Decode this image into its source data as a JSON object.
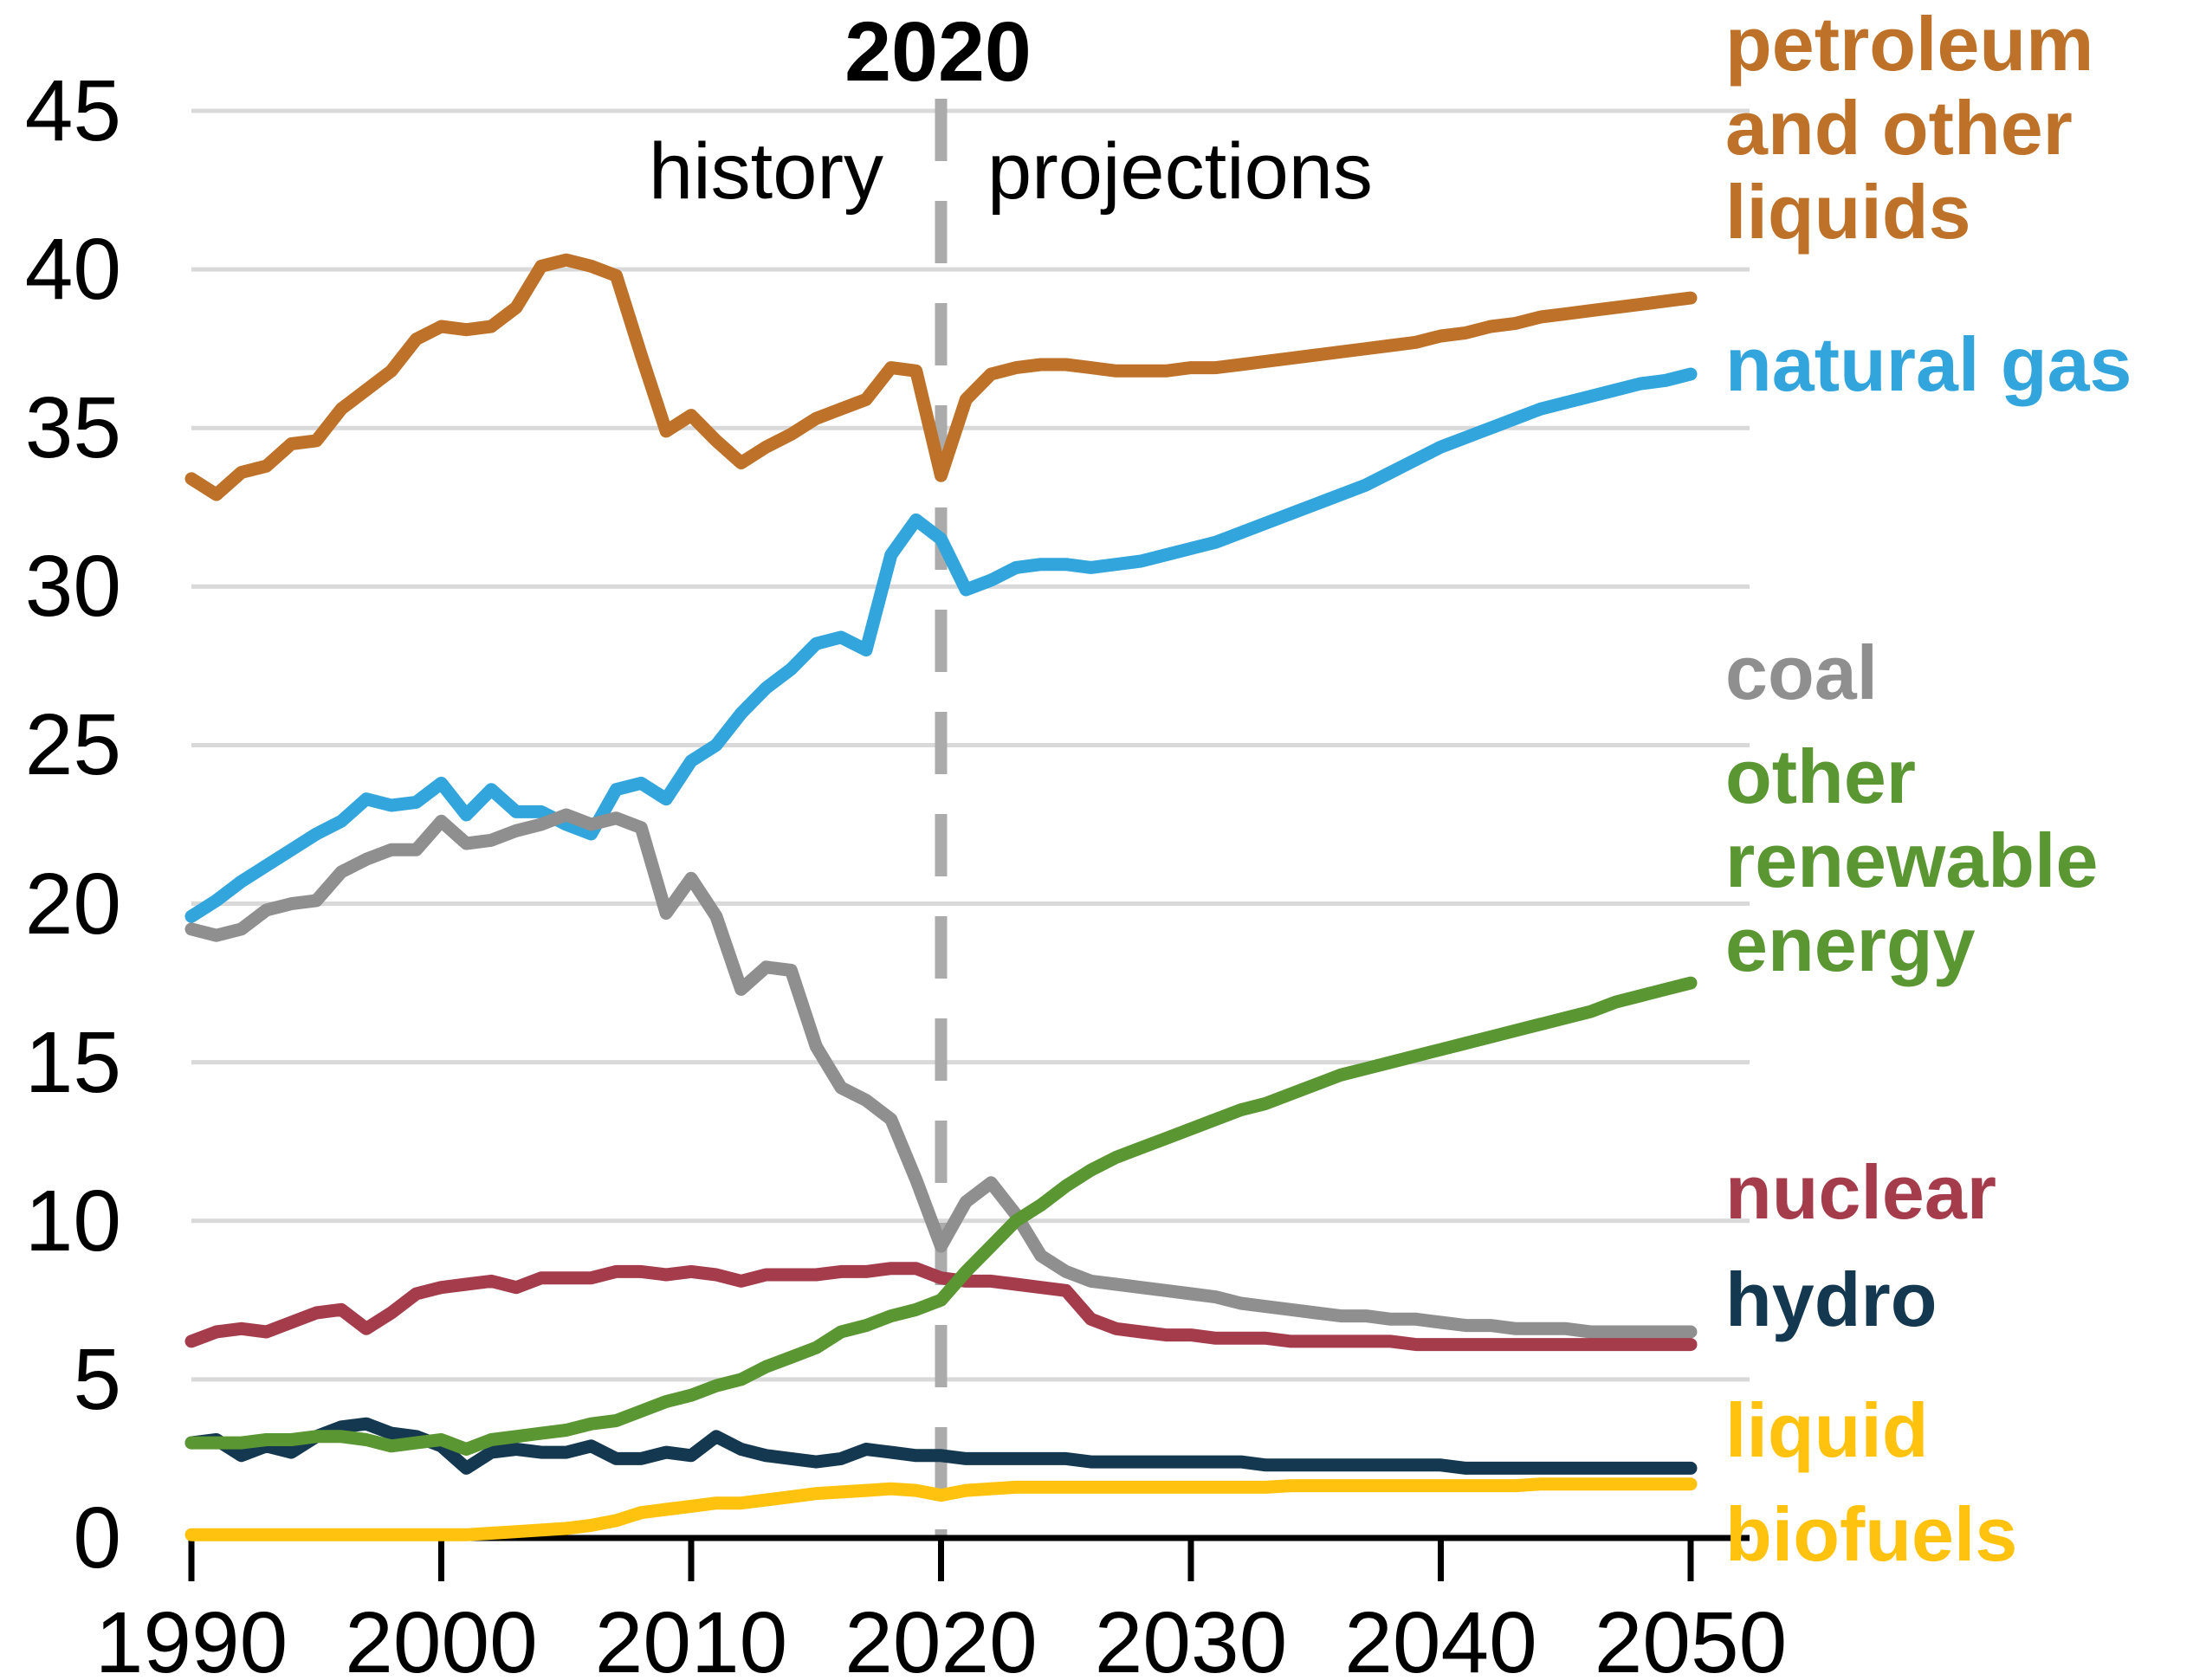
{
  "chart_data": {
    "type": "line",
    "title": "2020",
    "annotations": {
      "history_label": "history",
      "projections_label": "projections"
    },
    "x": {
      "start": 1990,
      "end": 2050,
      "step": 1,
      "tick_labels": [
        "1990",
        "2000",
        "2010",
        "2020",
        "2030",
        "2040",
        "2050"
      ]
    },
    "y": {
      "min": 0,
      "max": 45,
      "tick_labels": [
        "0",
        "5",
        "10",
        "15",
        "20",
        "25",
        "30",
        "35",
        "40",
        "45"
      ]
    },
    "grid": "horizontal",
    "divider_year": 2020,
    "legend_position": "right",
    "series": [
      {
        "id": "petroleum",
        "name": "petroleum and other liquids",
        "legend_lines": [
          "petroleum",
          "and other",
          "liquids"
        ],
        "color": "#BE7229",
        "values": [
          33.4,
          32.9,
          33.6,
          33.8,
          34.5,
          34.6,
          35.6,
          36.2,
          36.8,
          37.8,
          38.2,
          38.1,
          38.2,
          38.8,
          40.1,
          40.3,
          40.1,
          39.8,
          37.3,
          34.9,
          35.4,
          34.6,
          33.9,
          34.4,
          34.8,
          35.3,
          35.6,
          35.9,
          36.9,
          36.8,
          33.5,
          35.9,
          36.7,
          36.9,
          37.0,
          37.0,
          36.9,
          36.8,
          36.8,
          36.8,
          36.9,
          36.9,
          37.0,
          37.1,
          37.2,
          37.3,
          37.4,
          37.5,
          37.6,
          37.7,
          37.9,
          38.0,
          38.2,
          38.3,
          38.5,
          38.6,
          38.7,
          38.8,
          38.9,
          39.0,
          39.1
        ]
      },
      {
        "id": "natural_gas",
        "name": "natural gas",
        "legend_lines": [
          "natural gas"
        ],
        "color": "#31A5DC",
        "values": [
          19.6,
          20.1,
          20.7,
          21.2,
          21.7,
          22.2,
          22.6,
          23.3,
          23.1,
          23.2,
          23.8,
          22.8,
          23.6,
          22.9,
          22.9,
          22.5,
          22.2,
          23.6,
          23.8,
          23.3,
          24.5,
          25.0,
          26.0,
          26.8,
          27.4,
          28.2,
          28.4,
          28.0,
          31.0,
          32.1,
          31.5,
          29.9,
          30.2,
          30.6,
          30.7,
          30.7,
          30.6,
          30.7,
          30.8,
          31.0,
          31.2,
          31.4,
          31.7,
          32.0,
          32.3,
          32.6,
          32.9,
          33.2,
          33.6,
          34.0,
          34.4,
          34.7,
          35.0,
          35.3,
          35.6,
          35.8,
          36.0,
          36.2,
          36.4,
          36.5,
          36.7
        ]
      },
      {
        "id": "coal",
        "name": "coal",
        "legend_lines": [
          "coal"
        ],
        "color": "#8F8F8F",
        "values": [
          19.2,
          19.0,
          19.2,
          19.8,
          20.0,
          20.1,
          21.0,
          21.4,
          21.7,
          21.7,
          22.6,
          21.9,
          22.0,
          22.3,
          22.5,
          22.8,
          22.5,
          22.7,
          22.4,
          19.7,
          20.8,
          19.6,
          17.3,
          18.0,
          17.9,
          15.5,
          14.2,
          13.8,
          13.2,
          11.3,
          9.2,
          10.6,
          11.2,
          10.2,
          8.9,
          8.4,
          8.1,
          8.0,
          7.9,
          7.8,
          7.7,
          7.6,
          7.4,
          7.3,
          7.2,
          7.1,
          7.0,
          7.0,
          6.9,
          6.9,
          6.8,
          6.7,
          6.7,
          6.6,
          6.6,
          6.6,
          6.5,
          6.5,
          6.5,
          6.5,
          6.5
        ]
      },
      {
        "id": "nuclear",
        "name": "nuclear",
        "legend_lines": [
          "nuclear"
        ],
        "color": "#A43C4C",
        "values": [
          6.2,
          6.5,
          6.6,
          6.5,
          6.8,
          7.1,
          7.2,
          6.6,
          7.1,
          7.7,
          7.9,
          8.0,
          8.1,
          7.9,
          8.2,
          8.2,
          8.2,
          8.4,
          8.4,
          8.3,
          8.4,
          8.3,
          8.1,
          8.3,
          8.3,
          8.3,
          8.4,
          8.4,
          8.5,
          8.5,
          8.2,
          8.1,
          8.1,
          8.0,
          7.9,
          7.8,
          6.9,
          6.6,
          6.5,
          6.4,
          6.4,
          6.3,
          6.3,
          6.3,
          6.2,
          6.2,
          6.2,
          6.2,
          6.2,
          6.1,
          6.1,
          6.1,
          6.1,
          6.1,
          6.1,
          6.1,
          6.1,
          6.1,
          6.1,
          6.1,
          6.1
        ]
      },
      {
        "id": "hydro",
        "name": "hydro",
        "legend_lines": [
          "hydro"
        ],
        "color": "#14384F",
        "values": [
          3.0,
          3.1,
          2.6,
          2.9,
          2.7,
          3.2,
          3.5,
          3.6,
          3.3,
          3.2,
          2.9,
          2.2,
          2.7,
          2.8,
          2.7,
          2.7,
          2.9,
          2.5,
          2.5,
          2.7,
          2.6,
          3.2,
          2.8,
          2.6,
          2.5,
          2.4,
          2.5,
          2.8,
          2.7,
          2.6,
          2.6,
          2.5,
          2.5,
          2.5,
          2.5,
          2.5,
          2.4,
          2.4,
          2.4,
          2.4,
          2.4,
          2.4,
          2.4,
          2.3,
          2.3,
          2.3,
          2.3,
          2.3,
          2.3,
          2.3,
          2.3,
          2.2,
          2.2,
          2.2,
          2.2,
          2.2,
          2.2,
          2.2,
          2.2,
          2.2,
          2.2
        ]
      },
      {
        "id": "biofuels",
        "name": "liquid biofuels",
        "legend_lines": [
          "liquid",
          "biofuels"
        ],
        "color": "#FFC20E",
        "values": [
          0.1,
          0.1,
          0.1,
          0.1,
          0.1,
          0.1,
          0.1,
          0.1,
          0.1,
          0.1,
          0.1,
          0.1,
          0.15,
          0.2,
          0.25,
          0.3,
          0.4,
          0.55,
          0.8,
          0.9,
          1.0,
          1.1,
          1.1,
          1.2,
          1.3,
          1.4,
          1.45,
          1.5,
          1.55,
          1.5,
          1.35,
          1.5,
          1.55,
          1.6,
          1.6,
          1.6,
          1.6,
          1.6,
          1.6,
          1.6,
          1.6,
          1.6,
          1.6,
          1.6,
          1.65,
          1.65,
          1.65,
          1.65,
          1.65,
          1.65,
          1.65,
          1.65,
          1.65,
          1.65,
          1.7,
          1.7,
          1.7,
          1.7,
          1.7,
          1.7,
          1.7
        ]
      },
      {
        "id": "renewables",
        "name": "other renewable energy",
        "legend_lines": [
          "other",
          "renewable",
          "energy"
        ],
        "color": "#5A9632",
        "values": [
          3.0,
          3.0,
          3.0,
          3.1,
          3.1,
          3.2,
          3.2,
          3.1,
          2.9,
          3.0,
          3.1,
          2.8,
          3.1,
          3.2,
          3.3,
          3.4,
          3.6,
          3.7,
          4.0,
          4.3,
          4.5,
          4.8,
          5.0,
          5.4,
          5.7,
          6.0,
          6.5,
          6.7,
          7.0,
          7.2,
          7.5,
          8.4,
          9.2,
          10.0,
          10.5,
          11.1,
          11.6,
          12.0,
          12.3,
          12.6,
          12.9,
          13.2,
          13.5,
          13.7,
          14.0,
          14.3,
          14.6,
          14.8,
          15.0,
          15.2,
          15.4,
          15.6,
          15.8,
          16.0,
          16.2,
          16.4,
          16.6,
          16.9,
          17.1,
          17.3,
          17.5
        ]
      }
    ]
  },
  "colors": {
    "grid": "#D9D9D9",
    "divider": "#ABABAB",
    "axis": "#000000",
    "background": "#FFFFFF"
  }
}
